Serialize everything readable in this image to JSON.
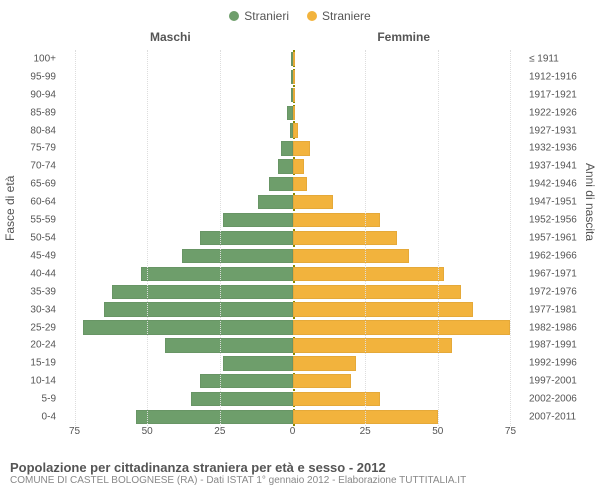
{
  "legend": {
    "male": {
      "label": "Stranieri",
      "color": "#6e9e6b"
    },
    "female": {
      "label": "Straniere",
      "color": "#f2b33d"
    }
  },
  "columns": {
    "male": "Maschi",
    "female": "Femmine"
  },
  "axis": {
    "left_label": "Fasce di età",
    "right_label": "Anni di nascita",
    "max": 80,
    "ticks_left": [
      75,
      50,
      25,
      0
    ],
    "ticks_right": [
      0,
      25,
      50,
      75
    ]
  },
  "colors": {
    "background": "#ffffff",
    "grid": "#dddddd",
    "center_line": "#888800",
    "text": "#555555"
  },
  "rows": [
    {
      "age": "100+",
      "birth": "≤ 1911",
      "m": 0,
      "f": 0
    },
    {
      "age": "95-99",
      "birth": "1912-1916",
      "m": 0,
      "f": 0
    },
    {
      "age": "90-94",
      "birth": "1917-1921",
      "m": 0,
      "f": 0
    },
    {
      "age": "85-89",
      "birth": "1922-1926",
      "m": 2,
      "f": 0
    },
    {
      "age": "80-84",
      "birth": "1927-1931",
      "m": 1,
      "f": 2
    },
    {
      "age": "75-79",
      "birth": "1932-1936",
      "m": 4,
      "f": 6
    },
    {
      "age": "70-74",
      "birth": "1937-1941",
      "m": 5,
      "f": 4
    },
    {
      "age": "65-69",
      "birth": "1942-1946",
      "m": 8,
      "f": 5
    },
    {
      "age": "60-64",
      "birth": "1947-1951",
      "m": 12,
      "f": 14
    },
    {
      "age": "55-59",
      "birth": "1952-1956",
      "m": 24,
      "f": 30
    },
    {
      "age": "50-54",
      "birth": "1957-1961",
      "m": 32,
      "f": 36
    },
    {
      "age": "45-49",
      "birth": "1962-1966",
      "m": 38,
      "f": 40
    },
    {
      "age": "40-44",
      "birth": "1967-1971",
      "m": 52,
      "f": 52
    },
    {
      "age": "35-39",
      "birth": "1972-1976",
      "m": 62,
      "f": 58
    },
    {
      "age": "30-34",
      "birth": "1977-1981",
      "m": 65,
      "f": 62
    },
    {
      "age": "25-29",
      "birth": "1982-1986",
      "m": 72,
      "f": 75
    },
    {
      "age": "20-24",
      "birth": "1987-1991",
      "m": 44,
      "f": 55
    },
    {
      "age": "15-19",
      "birth": "1992-1996",
      "m": 24,
      "f": 22
    },
    {
      "age": "10-14",
      "birth": "1997-2001",
      "m": 32,
      "f": 20
    },
    {
      "age": "5-9",
      "birth": "2002-2006",
      "m": 35,
      "f": 30
    },
    {
      "age": "0-4",
      "birth": "2007-2011",
      "m": 54,
      "f": 50
    }
  ],
  "caption": {
    "title": "Popolazione per cittadinanza straniera per età e sesso - 2012",
    "sub": "COMUNE DI CASTEL BOLOGNESE (RA) - Dati ISTAT 1° gennaio 2012 - Elaborazione TUTTITALIA.IT"
  }
}
